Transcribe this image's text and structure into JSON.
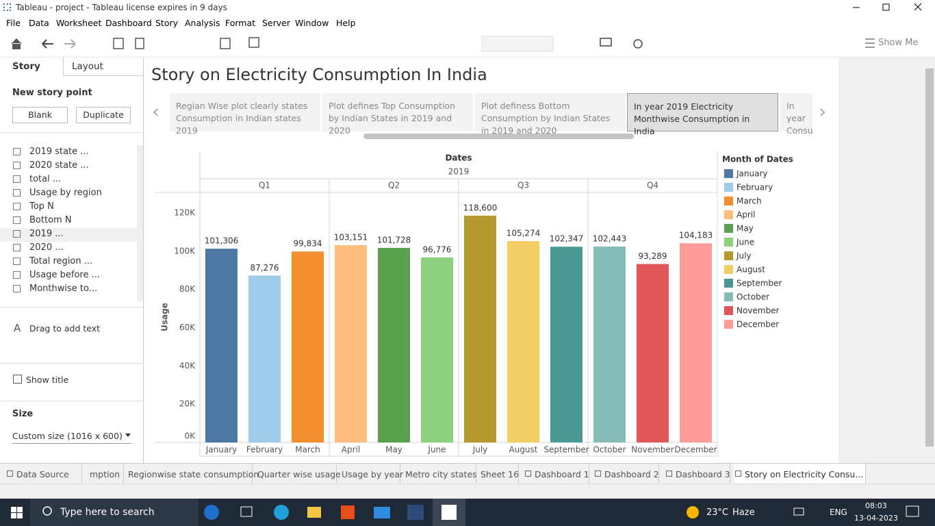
{
  "window": {
    "title": "Tableau - project - Tableau license expires in 9 days"
  },
  "menu": [
    "File",
    "Data",
    "Worksheet",
    "Dashboard",
    "Story",
    "Analysis",
    "Format",
    "Server",
    "Window",
    "Help"
  ],
  "toolbar": {
    "show_me": "Show Me"
  },
  "left_panel": {
    "tabs": [
      "Story",
      "Layout"
    ],
    "new_story_point": "New story point",
    "buttons": [
      "Blank",
      "Duplicate"
    ],
    "sheets": [
      "2019 state ...",
      "2020 state ...",
      "total ...",
      "Usage by region",
      "Top N",
      "Bottom N",
      "2019 ...",
      "2020 ...",
      "Total region ...",
      "Usage before ...",
      "Monthwise to..."
    ],
    "drag_text": "Drag to add text",
    "show_title": "Show title",
    "size_label": "Size",
    "size_value": "Custom size (1016 x 600)"
  },
  "story": {
    "title": "Story on Electricity Consumption In India",
    "points": [
      "Regian Wise plot clearly states Consumption in Indian states 2019",
      "Plot defines Top Consumption by Indian States in 2019 and 2020",
      "Plot definess Bottom Consumption by Indian States in 2019 and 2020",
      "In year 2019 Electricity Monthwise Consumption in India",
      "In year Consu"
    ]
  },
  "chart_data": {
    "type": "bar",
    "column_header": "Dates",
    "year": "2019",
    "quarters": [
      "Q1",
      "Q2",
      "Q3",
      "Q4"
    ],
    "y_label": "Usage",
    "legend_title": "Month of Dates",
    "categories": [
      "January",
      "February",
      "March",
      "April",
      "May",
      "June",
      "July",
      "August",
      "September",
      "October",
      "November",
      "December"
    ],
    "values": [
      101306,
      87276,
      99834,
      103151,
      101728,
      96776,
      118600,
      105274,
      102347,
      102443,
      93289,
      104183
    ],
    "value_labels": [
      "101,306",
      "87,276",
      "99,834",
      "103,151",
      "101,728",
      "96,776",
      "118,600",
      "105,274",
      "102,347",
      "102,443",
      "93,289",
      "104,183"
    ],
    "colors": [
      "#4e79a7",
      "#a0cbe8",
      "#f28e2b",
      "#ffbe7d",
      "#59a14f",
      "#8cd17d",
      "#b6992d",
      "#f1ce63",
      "#499894",
      "#86bcb6",
      "#e15759",
      "#ff9d9a"
    ],
    "ylim": [
      0,
      130000
    ],
    "yticks": [
      {
        "value": 0,
        "label": "0K"
      },
      {
        "value": 20000,
        "label": "20K"
      },
      {
        "value": 40000,
        "label": "40K"
      },
      {
        "value": 60000,
        "label": "60K"
      },
      {
        "value": 80000,
        "label": "80K"
      },
      {
        "value": 100000,
        "label": "100K"
      },
      {
        "value": 120000,
        "label": "120K"
      }
    ],
    "grid": false,
    "legend": "right"
  },
  "sheet_tabs": [
    "Data Source",
    "mption",
    "Regionwise state consumption",
    "Quarter wise usage",
    "Usage by year",
    "Metro city states",
    "Sheet 16",
    "Dashboard 1",
    "Dashboard 2",
    "Dashboard 3",
    "Story on Electricity Consu..."
  ],
  "taskbar": {
    "search": "Type here to search",
    "temperature": "23°C",
    "weather": "Haze",
    "language": "ENG",
    "time": "08:03",
    "date": "13-04-2023"
  }
}
